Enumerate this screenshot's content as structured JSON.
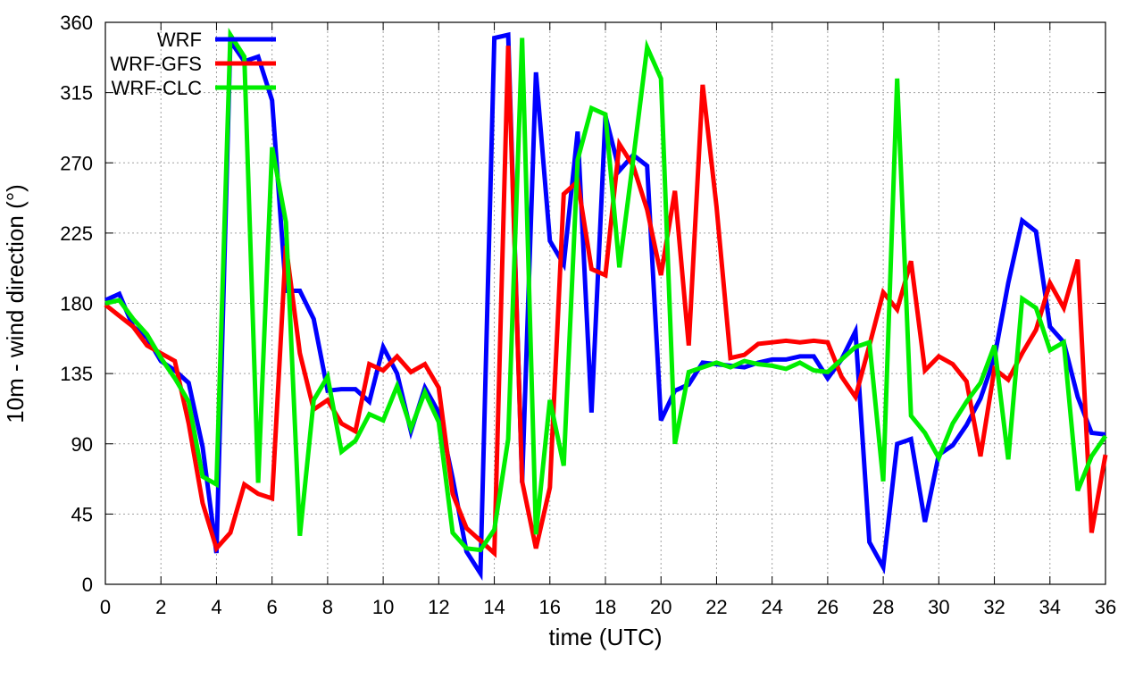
{
  "chart_data": {
    "type": "line",
    "title": "",
    "xlabel": "time (UTC)",
    "ylabel": "10m - wind direction (°)",
    "xlim": [
      0,
      36
    ],
    "ylim": [
      0,
      360
    ],
    "xticks": [
      0,
      2,
      4,
      6,
      8,
      10,
      12,
      14,
      16,
      18,
      20,
      22,
      24,
      26,
      28,
      30,
      32,
      34,
      36
    ],
    "yticks": [
      0,
      45,
      90,
      135,
      180,
      225,
      270,
      315,
      360
    ],
    "grid": true,
    "legend_position": "top-left",
    "series": [
      {
        "name": "WRF",
        "color": "#0000ff",
        "x": [
          0,
          0.5,
          1,
          1.5,
          2,
          2.5,
          3,
          3.5,
          4,
          4.5,
          5,
          5.5,
          6,
          6.5,
          7,
          7.5,
          8,
          8.5,
          9,
          9.5,
          10,
          10.5,
          11,
          11.5,
          12,
          12.5,
          13,
          13.5,
          14,
          14.5,
          15,
          15.5,
          16,
          16.5,
          17,
          17.5,
          18,
          18.5,
          19,
          19.5,
          20,
          20.5,
          21,
          21.5,
          22,
          22.5,
          23,
          23.5,
          24,
          24.5,
          25,
          25.5,
          26,
          26.5,
          27,
          27.5,
          28,
          28.5,
          29,
          29.5,
          30,
          30.5,
          31,
          31.5,
          32,
          32.5,
          33,
          33.5,
          34,
          34.5,
          35,
          35.5,
          36
        ],
        "y": [
          182,
          186,
          165,
          158,
          143,
          137,
          129,
          88,
          20,
          348,
          335,
          338,
          310,
          188,
          188,
          170,
          124,
          125,
          125,
          117,
          152,
          135,
          98,
          126,
          110,
          68,
          21,
          7,
          350,
          352,
          65,
          328,
          220,
          205,
          290,
          110,
          300,
          265,
          275,
          268,
          105,
          124,
          128,
          142,
          141,
          140,
          139,
          142,
          144,
          144,
          146,
          146,
          132,
          144,
          162,
          27,
          11,
          90,
          93,
          40,
          83,
          89,
          102,
          119,
          145,
          193,
          233,
          226,
          165,
          155,
          120,
          97,
          96
        ]
      },
      {
        "name": "WRF-GFS",
        "color": "#ff0000",
        "x": [
          0,
          0.5,
          1,
          1.5,
          2,
          2.5,
          3,
          3.5,
          4,
          4.5,
          5,
          5.5,
          6,
          6.5,
          7,
          7.5,
          8,
          8.5,
          9,
          9.5,
          10,
          10.5,
          11,
          11.5,
          12,
          12.5,
          13,
          13.5,
          14,
          14.5,
          15,
          15.5,
          16,
          16.5,
          17,
          17.5,
          18,
          18.5,
          19,
          19.5,
          20,
          20.5,
          21,
          21.5,
          22,
          22.5,
          23,
          23.5,
          24,
          24.5,
          25,
          25.5,
          26,
          26.5,
          27,
          27.5,
          28,
          28.5,
          29,
          29.5,
          30,
          30.5,
          31,
          31.5,
          32,
          32.5,
          33,
          33.5,
          34,
          34.5,
          35,
          35.5,
          36
        ],
        "y": [
          179,
          172,
          165,
          153,
          148,
          143,
          103,
          52,
          23,
          33,
          64,
          58,
          55,
          217,
          148,
          112,
          118,
          103,
          98,
          141,
          137,
          146,
          136,
          141,
          126,
          58,
          36,
          28,
          20,
          345,
          66,
          23,
          62,
          250,
          258,
          202,
          198,
          282,
          268,
          240,
          198,
          252,
          153,
          320,
          242,
          145,
          147,
          154,
          155,
          156,
          155,
          156,
          155,
          133,
          120,
          153,
          187,
          176,
          207,
          137,
          146,
          141,
          130,
          82,
          138,
          131,
          148,
          163,
          193,
          177,
          208,
          33,
          83
        ]
      },
      {
        "name": "WRF-CLC",
        "color": "#00ee00",
        "x": [
          0,
          0.5,
          1,
          1.5,
          2,
          2.5,
          3,
          3.5,
          4,
          4.5,
          5,
          5.5,
          6,
          6.5,
          7,
          7.5,
          8,
          8.5,
          9,
          9.5,
          10,
          10.5,
          11,
          11.5,
          12,
          12.5,
          13,
          13.5,
          14,
          14.5,
          15,
          15.5,
          16,
          16.5,
          17,
          17.5,
          18,
          18.5,
          19,
          19.5,
          20,
          20.5,
          21,
          21.5,
          22,
          22.5,
          23,
          23.5,
          24,
          24.5,
          25,
          25.5,
          26,
          26.5,
          27,
          27.5,
          28,
          28.5,
          29,
          29.5,
          30,
          30.5,
          31,
          31.5,
          32,
          32.5,
          33,
          33.5,
          34,
          34.5,
          35,
          35.5,
          36
        ],
        "y": [
          180,
          182,
          170,
          160,
          145,
          132,
          117,
          69,
          64,
          352,
          338,
          65,
          280,
          232,
          31,
          118,
          133,
          85,
          92,
          109,
          105,
          127,
          100,
          123,
          104,
          33,
          23,
          22,
          35,
          93,
          350,
          32,
          118,
          76,
          272,
          305,
          301,
          203,
          272,
          344,
          324,
          90,
          136,
          139,
          142,
          139,
          143,
          141,
          140,
          138,
          142,
          137,
          136,
          144,
          152,
          155,
          66,
          324,
          108,
          97,
          81,
          103,
          117,
          129,
          153,
          80,
          183,
          177,
          150,
          155,
          60,
          82,
          95
        ]
      }
    ]
  }
}
